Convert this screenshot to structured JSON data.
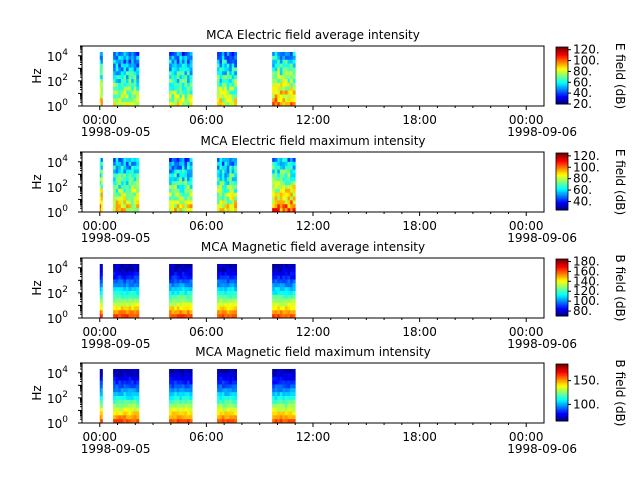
{
  "chart_data": [
    {
      "type": "heatmap",
      "title": "MCA  Electric field average intensity",
      "ylabel": "Hz",
      "colorbar_label": "E field (dB)",
      "colorbar_ticks": [
        "20.",
        "40.",
        "60.",
        "80.",
        "100.",
        "120."
      ],
      "colorbar_range": [
        20,
        125
      ],
      "intervals_hours": [
        [
          0.0,
          0.15
        ],
        [
          0.75,
          2.2
        ],
        [
          3.9,
          5.2
        ],
        [
          6.6,
          7.7
        ],
        [
          9.7,
          11.0
        ]
      ],
      "frequency_range_hz": [
        1,
        20000
      ],
      "peak_db_by_interval": [
        100,
        90,
        90,
        95,
        110
      ]
    },
    {
      "type": "heatmap",
      "title": "MCA  Electric field maximum intensity",
      "ylabel": "Hz",
      "colorbar_label": "E field (dB)",
      "colorbar_ticks": [
        "40.",
        "60.",
        "80.",
        "100.",
        "120."
      ],
      "colorbar_range": [
        25,
        125
      ],
      "intervals_hours": [
        [
          0.0,
          0.15
        ],
        [
          0.75,
          2.2
        ],
        [
          3.9,
          5.2
        ],
        [
          6.6,
          7.7
        ],
        [
          9.7,
          11.0
        ]
      ],
      "frequency_range_hz": [
        1,
        20000
      ],
      "peak_db_by_interval": [
        110,
        100,
        100,
        100,
        115
      ]
    },
    {
      "type": "heatmap",
      "title": "MCA  Magnetic field average intensity",
      "ylabel": "Hz",
      "colorbar_label": "B field (dB)",
      "colorbar_ticks": [
        "80.",
        "100.",
        "120.",
        "140.",
        "160.",
        "180."
      ],
      "colorbar_range": [
        70,
        185
      ],
      "intervals_hours": [
        [
          0.0,
          0.15
        ],
        [
          0.75,
          2.2
        ],
        [
          3.9,
          5.2
        ],
        [
          6.6,
          7.7
        ],
        [
          9.7,
          11.0
        ]
      ],
      "frequency_range_hz": [
        1,
        20000
      ],
      "peak_db_by_interval": [
        150,
        150,
        150,
        150,
        150
      ]
    },
    {
      "type": "heatmap",
      "title": "MCA  Magnetic field maximum intensity",
      "ylabel": "Hz",
      "colorbar_label": "B field (dB)",
      "colorbar_ticks": [
        "100.",
        "150."
      ],
      "colorbar_range": [
        65,
        185
      ],
      "intervals_hours": [
        [
          0.0,
          0.15
        ],
        [
          0.75,
          2.2
        ],
        [
          3.9,
          5.2
        ],
        [
          6.6,
          7.7
        ],
        [
          9.7,
          11.0
        ]
      ],
      "frequency_range_hz": [
        1,
        20000
      ],
      "peak_db_by_interval": [
        160,
        160,
        160,
        160,
        160
      ]
    }
  ],
  "shared": {
    "x_tick_labels": [
      "00:00",
      "06:00",
      "12:00",
      "18:00",
      "00:00"
    ],
    "x_tick_hours": [
      0,
      6,
      12,
      18,
      24
    ],
    "x_range_hours": [
      -1,
      25
    ],
    "date_start": "1998-09-05",
    "date_end": "1998-09-06",
    "y_tick_labels": [
      {
        "base": "10",
        "exp": "0",
        "value": 1
      },
      {
        "base": "10",
        "exp": "2",
        "value": 100
      },
      {
        "base": "10",
        "exp": "4",
        "value": 10000
      }
    ],
    "y_scale": "log",
    "y_range_hz": [
      1,
      60000
    ]
  }
}
